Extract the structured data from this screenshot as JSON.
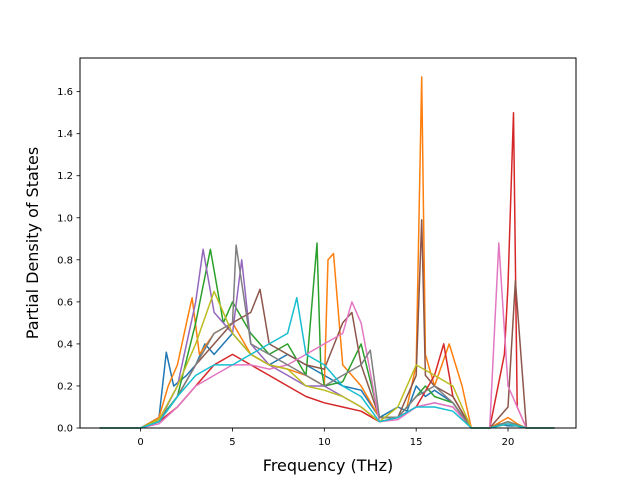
{
  "chart_data": {
    "type": "line",
    "title": "",
    "xlabel": "Frequency (THz)",
    "ylabel": "Partial Density of States",
    "xlim": [
      -3.3,
      23.7
    ],
    "ylim": [
      0.0,
      1.76
    ],
    "xticks": [
      0,
      5,
      10,
      15,
      20
    ],
    "xtick_labels": [
      "0",
      "5",
      "10",
      "15",
      "20"
    ],
    "yticks": [
      0.0,
      0.2,
      0.4,
      0.6,
      0.8,
      1.0,
      1.2,
      1.4,
      1.6
    ],
    "ytick_labels": [
      "0.0",
      "0.2",
      "0.4",
      "0.6",
      "0.8",
      "1.0",
      "1.2",
      "1.4",
      "1.6"
    ],
    "grid": false,
    "legend": "none",
    "colors": [
      "#1f77b4",
      "#ff7f0e",
      "#2ca02c",
      "#d62728",
      "#9467bd",
      "#8c564b",
      "#e377c2",
      "#7f7f7f",
      "#bcbd22",
      "#17becf"
    ],
    "series": [
      {
        "color": "#1f77b4",
        "x": [
          -2.2,
          0,
          1,
          1.4,
          1.8,
          2.5,
          3,
          3.5,
          4,
          5,
          6,
          7,
          8,
          9,
          10,
          11,
          12,
          13,
          14,
          14.5,
          15,
          15.5,
          16,
          17,
          18,
          19,
          19.5,
          20,
          20.5,
          21,
          22.5
        ],
        "y": [
          0,
          0,
          0.05,
          0.36,
          0.2,
          0.25,
          0.3,
          0.4,
          0.35,
          0.45,
          0.35,
          0.3,
          0.35,
          0.3,
          0.25,
          0.2,
          0.18,
          0.05,
          0.1,
          0.08,
          0.2,
          0.15,
          0.18,
          0.12,
          0,
          0,
          0.02,
          0.01,
          0.01,
          0,
          0
        ]
      },
      {
        "color": "#ff7f0e",
        "x": [
          -2.2,
          0,
          1,
          1.5,
          2,
          2.5,
          2.8,
          3.2,
          4,
          5,
          6,
          7,
          8,
          9,
          10,
          10.2,
          10.5,
          11,
          12,
          13,
          14,
          14.5,
          15,
          15.3,
          15.5,
          16,
          16.8,
          17.5,
          18,
          19,
          20,
          20.5,
          21,
          22.5
        ],
        "y": [
          0,
          0,
          0.05,
          0.2,
          0.3,
          0.5,
          0.62,
          0.35,
          0.45,
          0.5,
          0.35,
          0.3,
          0.28,
          0.25,
          0.2,
          0.8,
          0.83,
          0.3,
          0.2,
          0.05,
          0.05,
          0.1,
          0.3,
          1.67,
          0.35,
          0.2,
          0.4,
          0.2,
          0,
          0,
          0.05,
          0.02,
          0,
          0
        ]
      },
      {
        "color": "#2ca02c",
        "x": [
          -2.2,
          0,
          1,
          2,
          3,
          3.8,
          4.5,
          5,
          6,
          7,
          8,
          9,
          9.6,
          9.8,
          10,
          11,
          12,
          13,
          14,
          15,
          15.5,
          16,
          17,
          18,
          19,
          20,
          21,
          22.5
        ],
        "y": [
          0,
          0,
          0.04,
          0.15,
          0.5,
          0.85,
          0.5,
          0.6,
          0.45,
          0.35,
          0.4,
          0.25,
          0.88,
          0.3,
          0.2,
          0.22,
          0.4,
          0.05,
          0.05,
          0.15,
          0.2,
          0.15,
          0.12,
          0,
          0,
          0.03,
          0,
          0
        ]
      },
      {
        "color": "#d62728",
        "x": [
          -2.2,
          0,
          1,
          2,
          3,
          4,
          5,
          6,
          7,
          8,
          9,
          10,
          11,
          12,
          13,
          14,
          15,
          16,
          16.5,
          17,
          18,
          19,
          19.8,
          20,
          20.3,
          20.5,
          21,
          22.5
        ],
        "y": [
          0,
          0,
          0.03,
          0.1,
          0.2,
          0.3,
          0.35,
          0.3,
          0.25,
          0.2,
          0.15,
          0.12,
          0.1,
          0.08,
          0.03,
          0.05,
          0.1,
          0.25,
          0.4,
          0.15,
          0,
          0,
          0.35,
          0.68,
          1.5,
          0.1,
          0,
          0
        ]
      },
      {
        "color": "#9467bd",
        "x": [
          -2.2,
          0,
          1,
          2,
          3,
          3.4,
          4,
          5,
          5.5,
          6,
          7,
          8,
          9,
          10,
          11,
          12,
          13,
          14,
          15,
          16,
          17,
          18,
          19,
          20,
          21,
          22.5
        ],
        "y": [
          0,
          0,
          0.03,
          0.2,
          0.6,
          0.85,
          0.55,
          0.45,
          0.8,
          0.4,
          0.3,
          0.25,
          0.2,
          0.2,
          0.15,
          0.1,
          0.03,
          0.05,
          0.1,
          0.12,
          0.1,
          0,
          0,
          0.02,
          0,
          0
        ]
      },
      {
        "color": "#8c564b",
        "x": [
          -2.2,
          0,
          1,
          2,
          3,
          4,
          5,
          6,
          6.5,
          7,
          8,
          9,
          10,
          11,
          11.5,
          12,
          13,
          14,
          15,
          15.3,
          15.5,
          16,
          17,
          18,
          19,
          20,
          20.4,
          21,
          22.5
        ],
        "y": [
          0,
          0,
          0.03,
          0.15,
          0.3,
          0.4,
          0.5,
          0.55,
          0.66,
          0.4,
          0.35,
          0.3,
          0.28,
          0.5,
          0.55,
          0.3,
          0.05,
          0.05,
          0.25,
          0.99,
          0.25,
          0.2,
          0.15,
          0,
          0,
          0.1,
          0.7,
          0,
          0
        ]
      },
      {
        "color": "#e377c2",
        "x": [
          -2.2,
          0,
          1,
          2,
          3,
          4,
          5,
          6,
          7,
          8,
          9,
          10,
          11,
          11.5,
          12,
          13,
          14,
          15,
          16,
          17,
          18,
          19,
          19.5,
          20,
          20.5,
          21,
          22.5
        ],
        "y": [
          0,
          0,
          0.02,
          0.1,
          0.2,
          0.25,
          0.3,
          0.3,
          0.28,
          0.3,
          0.35,
          0.4,
          0.45,
          0.6,
          0.5,
          0.03,
          0.04,
          0.1,
          0.12,
          0.1,
          0,
          0,
          0.88,
          0.2,
          0.1,
          0,
          0
        ]
      },
      {
        "color": "#7f7f7f",
        "x": [
          -2.2,
          0,
          1,
          2,
          3,
          4,
          5,
          5.2,
          6,
          7,
          8,
          9,
          10,
          11,
          12,
          12.5,
          13,
          14,
          15,
          16,
          17,
          18,
          19,
          20,
          21,
          22.5
        ],
        "y": [
          0,
          0,
          0.03,
          0.15,
          0.3,
          0.45,
          0.5,
          0.87,
          0.4,
          0.35,
          0.3,
          0.25,
          0.2,
          0.25,
          0.3,
          0.37,
          0.05,
          0.05,
          0.15,
          0.2,
          0.12,
          0,
          0,
          0.03,
          0,
          0
        ]
      },
      {
        "color": "#bcbd22",
        "x": [
          -2.2,
          0,
          1,
          2,
          3,
          4,
          5,
          6,
          7,
          8,
          9,
          10,
          11,
          12,
          13,
          14,
          15,
          16,
          17,
          18,
          19,
          20,
          21,
          22.5
        ],
        "y": [
          0,
          0,
          0.04,
          0.2,
          0.4,
          0.65,
          0.45,
          0.35,
          0.3,
          0.28,
          0.2,
          0.18,
          0.15,
          0.1,
          0.03,
          0.1,
          0.3,
          0.25,
          0.2,
          0,
          0,
          0.02,
          0,
          0
        ]
      },
      {
        "color": "#17becf",
        "x": [
          -2.2,
          0,
          1,
          2,
          3,
          4,
          5,
          6,
          7,
          8,
          8.5,
          9,
          10,
          11,
          12,
          13,
          14,
          15,
          16,
          17,
          18,
          19,
          20,
          21,
          22.5
        ],
        "y": [
          0,
          0,
          0.03,
          0.15,
          0.25,
          0.3,
          0.3,
          0.35,
          0.4,
          0.45,
          0.62,
          0.35,
          0.3,
          0.2,
          0.15,
          0.03,
          0.05,
          0.1,
          0.1,
          0.08,
          0,
          0,
          0.02,
          0,
          0
        ]
      }
    ]
  }
}
